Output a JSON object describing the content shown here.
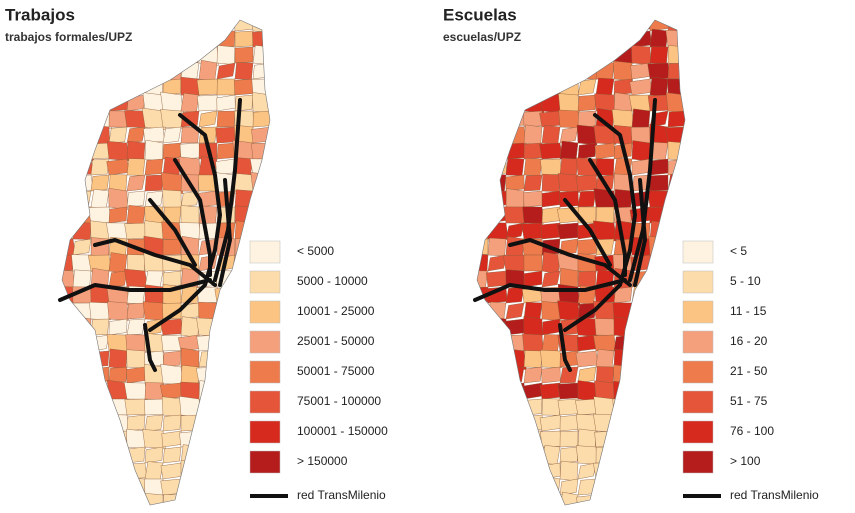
{
  "maps": [
    {
      "title": "Trabajos",
      "subtitle": "trabajos formales/UPZ",
      "legend": [
        {
          "label": "< 5000",
          "color": "#fef3e0"
        },
        {
          "label": "5000 - 10000",
          "color": "#fddcab"
        },
        {
          "label": "10001 - 25000",
          "color": "#fcc482"
        },
        {
          "label": "25001 - 50000",
          "color": "#f5a07c"
        },
        {
          "label": "50001 - 75000",
          "color": "#ee7b4c"
        },
        {
          "label": "75001 - 100000",
          "color": "#e5553a"
        },
        {
          "label": "100001 - 150000",
          "color": "#d52a1d"
        },
        {
          "label": "> 150000",
          "color": "#b51c1c"
        }
      ],
      "line_label": "red TransMilenio"
    },
    {
      "title": "Escuelas",
      "subtitle": "escuelas/UPZ",
      "legend": [
        {
          "label": "< 5",
          "color": "#fef3e0"
        },
        {
          "label": "5 - 10",
          "color": "#fddcab"
        },
        {
          "label": "11 - 15",
          "color": "#fcc482"
        },
        {
          "label": "16 - 20",
          "color": "#f5a07c"
        },
        {
          "label": "21 - 50",
          "color": "#ee7b4c"
        },
        {
          "label": "51 - 75",
          "color": "#e5553a"
        },
        {
          "label": "76 - 100",
          "color": "#d52a1d"
        },
        {
          "label": "> 100",
          "color": "#b51c1c"
        }
      ],
      "line_label": "red TransMilenio"
    }
  ]
}
